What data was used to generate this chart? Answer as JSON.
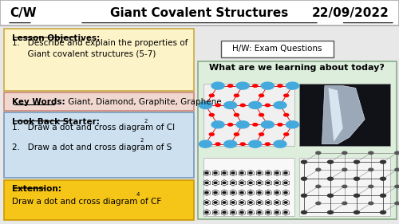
{
  "title_cw": "C/W",
  "title_main": "Giant Covalent Structures",
  "title_date": "22/09/2022",
  "bg_color": "#e8e8e8",
  "header_bg": "#ffffff",
  "header_border": "#aaaaaa",
  "objectives_bg": "#fdf3c8",
  "objectives_border": "#ccaa44",
  "objectives_title": "Lesson Objectives:",
  "objectives_line1": "1.   Describe and explain the properties of",
  "objectives_line2": "      Giant covalent structures (5-7)",
  "keywords_bg": "#f0d8d0",
  "keywords_border": "#cc8877",
  "keywords_bold": "Key Words:",
  "keywords_rest": " Giant, Diamond, Graphite, Graphene",
  "starter_bg": "#cce0f0",
  "starter_border": "#7799bb",
  "starter_title": "Look Back Starter:",
  "starter_line1": "1.   Draw a dot and cross diagram of Cl",
  "starter_line2": "2.   Draw a dot and cross diagram of S",
  "extension_bg": "#f5c518",
  "extension_border": "#cc9900",
  "extension_title": "Extension:",
  "extension_text": "Draw a dot and cross diagram of CF",
  "hw_text": "H/W: Exam Questions",
  "hw_bg": "#ffffff",
  "hw_border": "#555555",
  "learning_bg": "#ddeedd",
  "learning_border": "#88aa88",
  "learning_title": "What are we learning about today?"
}
